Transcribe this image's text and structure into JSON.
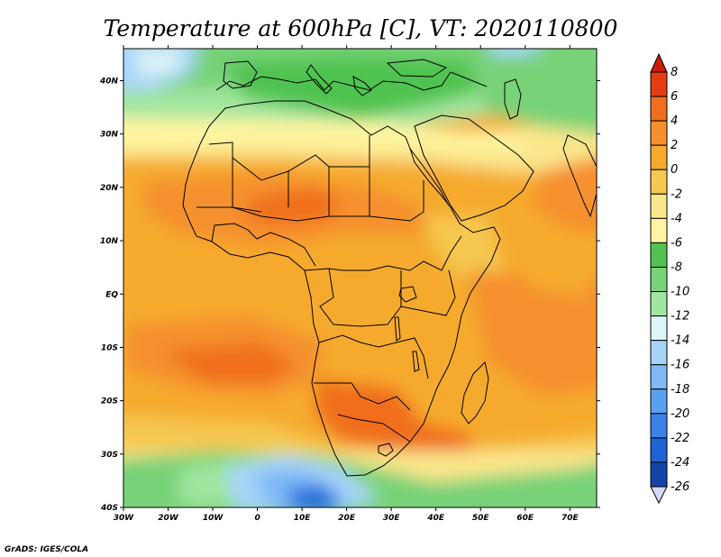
{
  "title": "Temperature at 600hPa [C], VT: 2020110800",
  "credit": "GrADS: IGES/COLA",
  "colors": {
    "palette": [
      "#0a0a6e",
      "#1443a8",
      "#1e64d2",
      "#3b82e6",
      "#5aa0f0",
      "#7fb8f5",
      "#a8d4fa",
      "#dcf5f5",
      "#a0e6a0",
      "#78d278",
      "#50c350",
      "#fff5a0",
      "#fae68c",
      "#f5c850",
      "#f5aa2d",
      "#f5912d",
      "#f06e1e",
      "#e63c14",
      "#c81e0a"
    ],
    "land_outline": "#000000"
  },
  "map": {
    "lon_labels": [
      "30W",
      "20W",
      "10W",
      "0",
      "10E",
      "20E",
      "30E",
      "40E",
      "50E",
      "60E",
      "70E"
    ],
    "lat_labels": [
      "40S",
      "30S",
      "20S",
      "10S",
      "EQ",
      "10N",
      "20N",
      "30N",
      "40N"
    ]
  },
  "colorbar": {
    "labels": [
      "8",
      "6",
      "4",
      "2",
      "0",
      "-2",
      "-4",
      "-6",
      "-8",
      "-10",
      "-12",
      "-14",
      "-16",
      "-18",
      "-20",
      "-22",
      "-24",
      "-26"
    ]
  },
  "chart_data": {
    "type": "heatmap",
    "title": "Temperature at 600hPa [C], VT: 2020110800",
    "x_extent_deg": [
      -30,
      76
    ],
    "y_extent_deg": [
      -40,
      46
    ],
    "units": "C",
    "levels": [
      -26,
      -24,
      -22,
      -20,
      -18,
      -16,
      -14,
      -12,
      -10,
      -8,
      -6,
      -4,
      -2,
      0,
      2,
      4,
      6,
      8
    ],
    "regions": [
      {
        "area": "Mediterranean / North Africa coast",
        "approx_value_range": [
          -8,
          -4
        ]
      },
      {
        "area": "Sahel and West Africa",
        "approx_value_range": [
          2,
          6
        ]
      },
      {
        "area": "Equatorial Africa",
        "approx_value_range": [
          2,
          4
        ]
      },
      {
        "area": "Southern Africa / Kalahari",
        "approx_value_range": [
          4,
          6
        ]
      },
      {
        "area": "Tropical Atlantic near 10S-20S",
        "approx_value_range": [
          4,
          6
        ]
      },
      {
        "area": "Southern Ocean near 35S-40S",
        "approx_value_range": [
          -18,
          -10
        ]
      },
      {
        "area": "Northeast Atlantic near 40N 30W",
        "approx_value_range": [
          -12,
          -8
        ]
      }
    ]
  }
}
